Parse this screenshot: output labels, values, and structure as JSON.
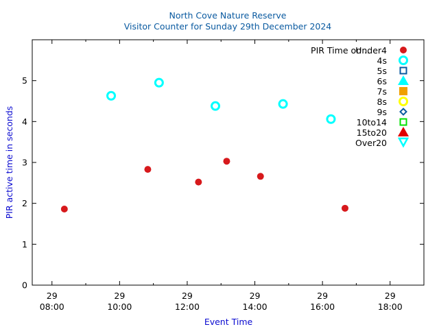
{
  "chart_data": {
    "type": "scatter",
    "title": "North Cove Nature Reserve",
    "subtitle": "Visitor Counter for Sunday 29th December 2024",
    "xlabel": "Event Time",
    "ylabel": "PIR active time in seconds",
    "xlim": [
      "07:25",
      "19:00"
    ],
    "ylim": [
      0,
      6
    ],
    "grid": false,
    "legend_position": "top-right",
    "legend_title": "PIR Time on ..",
    "x_ticks": [
      {
        "day": "29",
        "time": "08:00"
      },
      {
        "day": "29",
        "time": "10:00"
      },
      {
        "day": "29",
        "time": "12:00"
      },
      {
        "day": "29",
        "time": "14:00"
      },
      {
        "day": "29",
        "time": "16:00"
      },
      {
        "day": "29",
        "time": "18:00"
      }
    ],
    "y_ticks": [
      "0",
      "1",
      "2",
      "3",
      "4",
      "5"
    ],
    "series": [
      {
        "name": "Under4",
        "marker": "filled-circle",
        "color": "#d7191c",
        "points": [
          [
            "08:22",
            1.86
          ],
          [
            "10:50",
            2.83
          ],
          [
            "12:20",
            2.52
          ],
          [
            "13:10",
            3.03
          ],
          [
            "14:10",
            2.66
          ],
          [
            "16:40",
            1.88
          ]
        ]
      },
      {
        "name": "4s",
        "marker": "open-circle",
        "color": "#00ffff",
        "points": [
          [
            "09:45",
            4.63
          ],
          [
            "11:10",
            4.95
          ],
          [
            "12:50",
            4.38
          ],
          [
            "14:50",
            4.43
          ],
          [
            "16:15",
            4.06
          ]
        ]
      },
      {
        "name": "5s",
        "marker": "open-square",
        "color": "#0a5aa0",
        "points": []
      },
      {
        "name": "6s",
        "marker": "filled-triangle",
        "color": "#00ffff",
        "points": []
      },
      {
        "name": "7s",
        "marker": "filled-square",
        "color": "#f0a000",
        "points": []
      },
      {
        "name": "8s",
        "marker": "open-circle",
        "color": "#ffff00",
        "points": []
      },
      {
        "name": "9s",
        "marker": "open-diamond",
        "color": "#0a5aa0",
        "points": []
      },
      {
        "name": "10to14",
        "marker": "open-square",
        "color": "#00e000",
        "points": []
      },
      {
        "name": "15to20",
        "marker": "filled-triangle",
        "color": "#e00000",
        "points": []
      },
      {
        "name": "Over20",
        "marker": "open-triangle-down",
        "color": "#00ffff",
        "points": []
      }
    ]
  }
}
